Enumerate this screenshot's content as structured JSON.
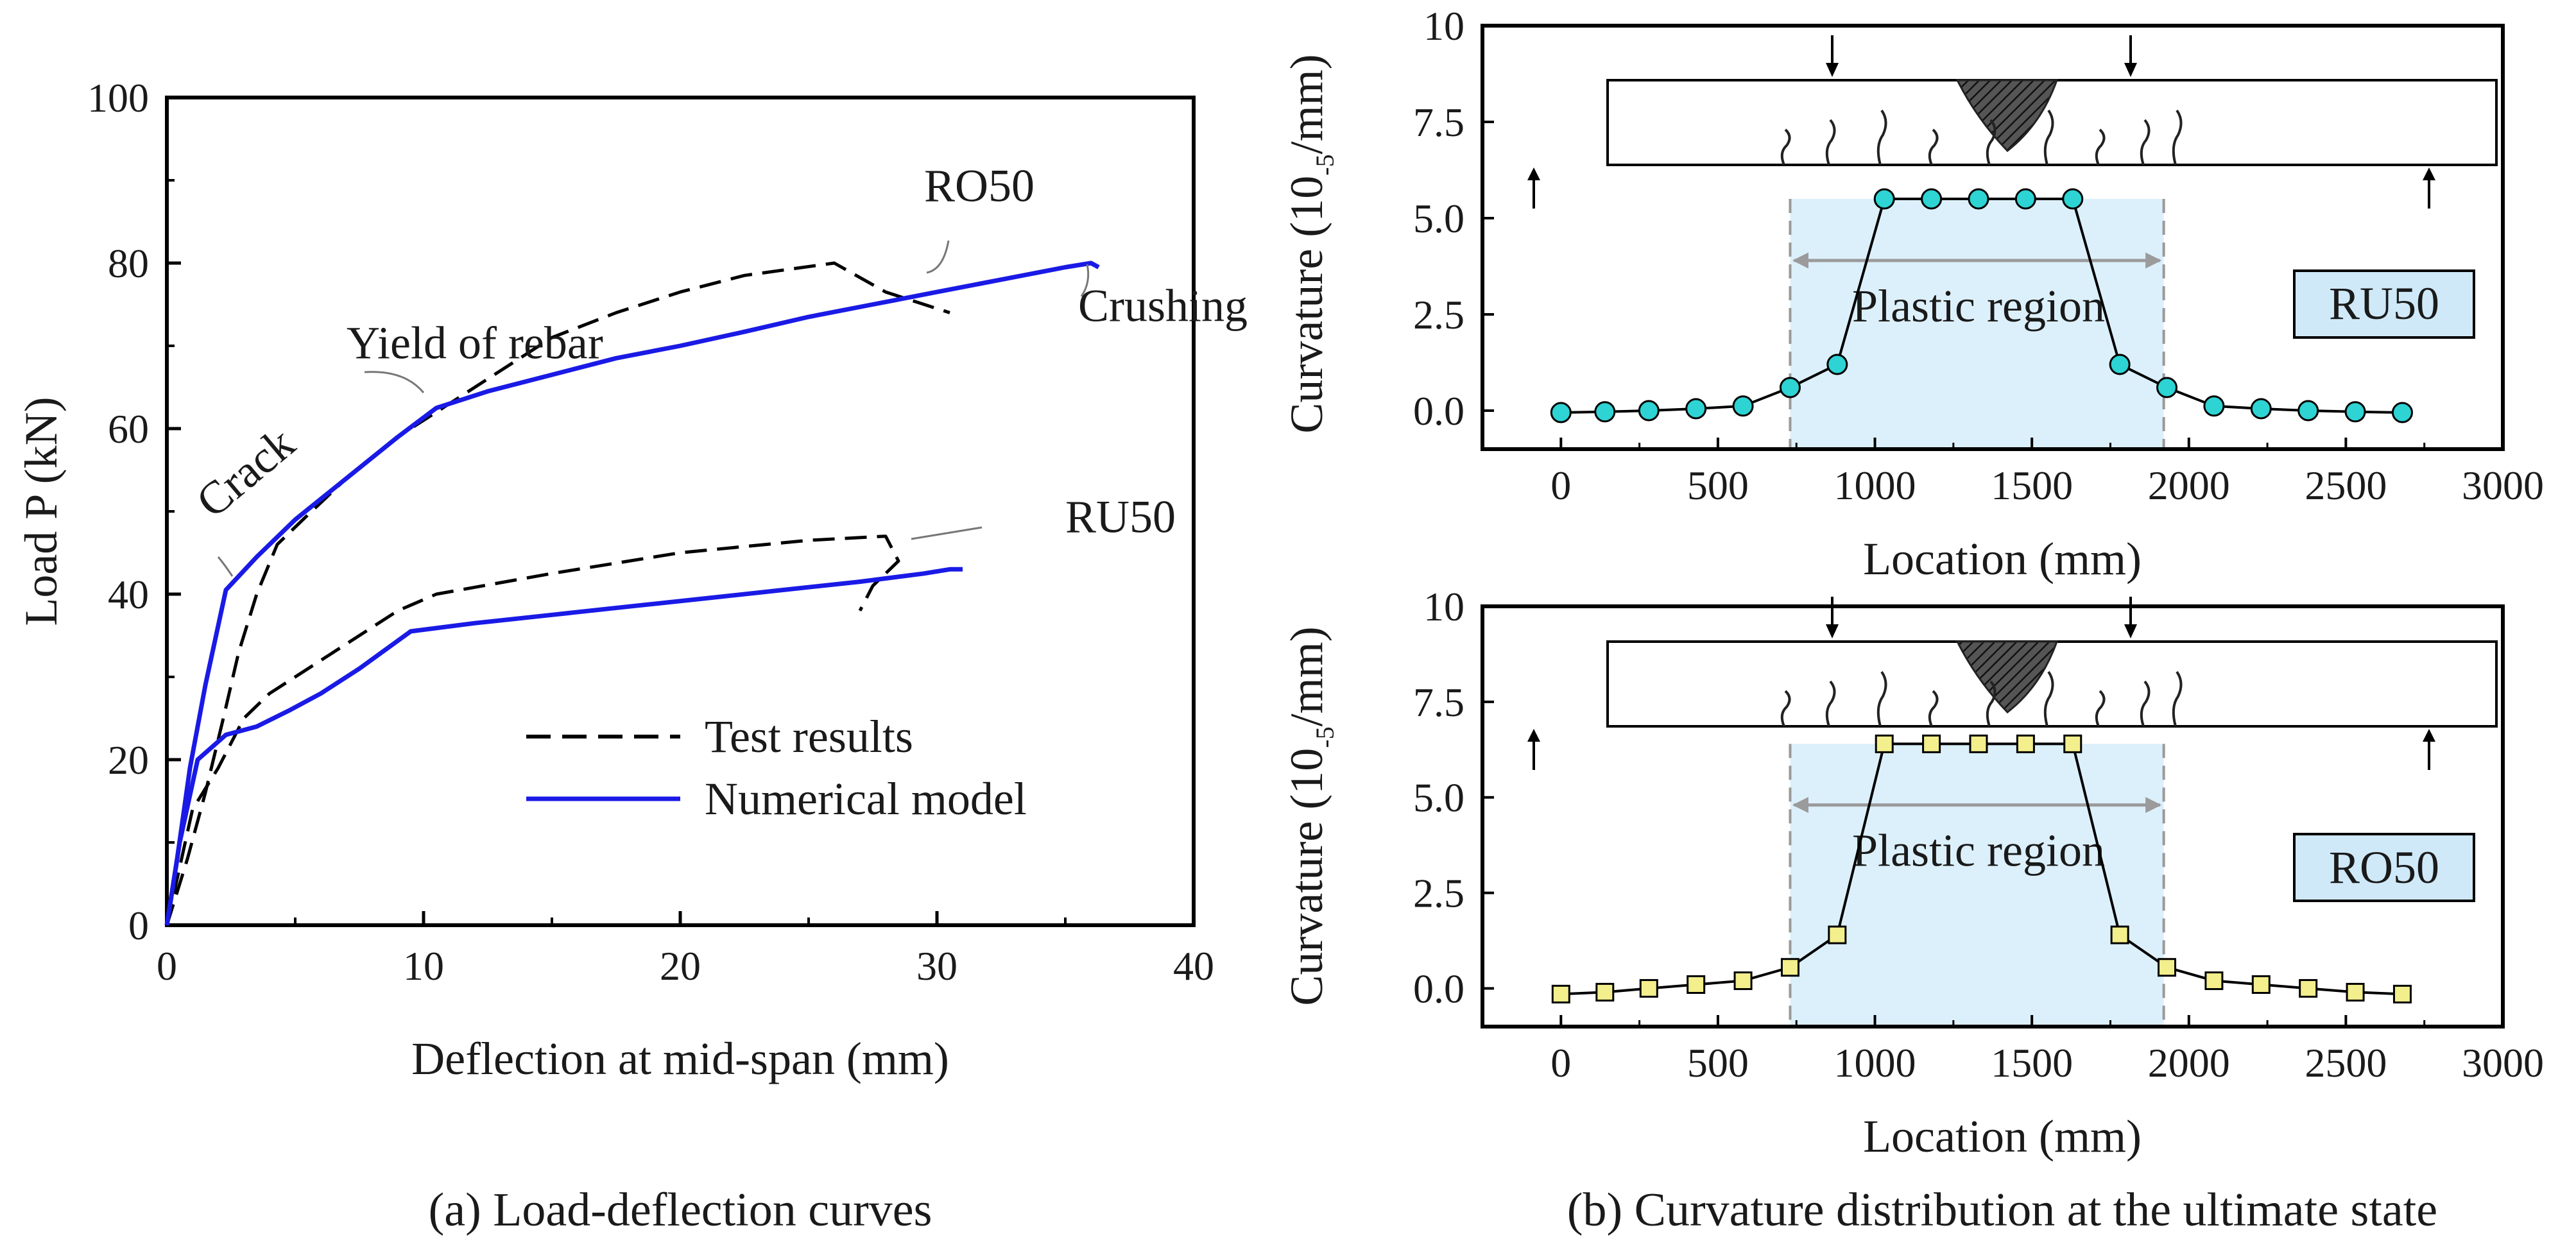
{
  "chart_data": [
    {
      "id": "load_deflection",
      "type": "line",
      "caption": "(a) Load-deflection curves",
      "xlabel": "Deflection at mid-span (mm)",
      "ylabel": "Load P (kN)",
      "xlim": [
        0,
        40
      ],
      "ylim": [
        0,
        100
      ],
      "x_ticks": [
        0,
        10,
        20,
        30,
        40
      ],
      "y_ticks": [
        0,
        20,
        40,
        60,
        80,
        100
      ],
      "grid": false,
      "legend": {
        "placement": "bottom-right",
        "entries": [
          {
            "label": "Test results",
            "style": "dashed",
            "color": "#000000"
          },
          {
            "label": "Numerical model",
            "style": "solid",
            "color": "#1a1ae6"
          }
        ]
      },
      "series": [
        {
          "name": "RO50 Test results",
          "style": "dashed",
          "color": "#000000",
          "points": [
            [
              0,
              0
            ],
            [
              0.8,
              8
            ],
            [
              1.5,
              16
            ],
            [
              2.2,
              25
            ],
            [
              2.8,
              33
            ],
            [
              3.5,
              40
            ],
            [
              4.3,
              46
            ],
            [
              5.3,
              49
            ],
            [
              7,
              54
            ],
            [
              9,
              59
            ],
            [
              11,
              63
            ],
            [
              13,
              67
            ],
            [
              15,
              71
            ],
            [
              17.5,
              74
            ],
            [
              20,
              76.5
            ],
            [
              22.5,
              78.5
            ],
            [
              26,
              80
            ],
            [
              28,
              76.5
            ],
            [
              30.5,
              74
            ]
          ]
        },
        {
          "name": "RO50 Numerical model",
          "style": "solid",
          "color": "#1a1ae6",
          "points": [
            [
              0,
              0
            ],
            [
              0.4,
              8
            ],
            [
              0.9,
              19
            ],
            [
              1.5,
              29
            ],
            [
              2.3,
              40.5
            ],
            [
              3.5,
              44.5
            ],
            [
              5,
              49
            ],
            [
              7,
              54
            ],
            [
              9,
              59
            ],
            [
              10.5,
              62.5
            ],
            [
              12.5,
              64.5
            ],
            [
              15,
              66.5
            ],
            [
              17.5,
              68.5
            ],
            [
              20,
              70
            ],
            [
              22.5,
              71.7
            ],
            [
              25,
              73.5
            ],
            [
              27.5,
              75
            ],
            [
              30,
              76.5
            ],
            [
              32.5,
              78
            ],
            [
              35,
              79.5
            ],
            [
              36,
              80
            ],
            [
              36.3,
              79.5
            ]
          ]
        },
        {
          "name": "RU50 Test results",
          "style": "dashed",
          "color": "#000000",
          "points": [
            [
              0,
              0
            ],
            [
              1,
              14
            ],
            [
              2,
              19
            ],
            [
              3,
              25
            ],
            [
              4,
              28
            ],
            [
              5,
              30
            ],
            [
              7,
              34
            ],
            [
              9,
              38
            ],
            [
              10.5,
              40
            ],
            [
              15,
              42.5
            ],
            [
              20,
              45
            ],
            [
              25,
              46.5
            ],
            [
              28,
              47
            ],
            [
              28.5,
              44
            ],
            [
              27.5,
              41
            ],
            [
              27,
              38
            ]
          ]
        },
        {
          "name": "RU50 Numerical model",
          "style": "solid",
          "color": "#1a1ae6",
          "points": [
            [
              0,
              0
            ],
            [
              0.5,
              10
            ],
            [
              1.2,
              20
            ],
            [
              2.3,
              23
            ],
            [
              3.5,
              24
            ],
            [
              4.8,
              26
            ],
            [
              6,
              28
            ],
            [
              7.5,
              31
            ],
            [
              9.5,
              35.5
            ],
            [
              12,
              36.5
            ],
            [
              15,
              37.5
            ],
            [
              18,
              38.5
            ],
            [
              21,
              39.5
            ],
            [
              24,
              40.5
            ],
            [
              27,
              41.5
            ],
            [
              29.5,
              42.5
            ],
            [
              30.5,
              43
            ],
            [
              31,
              43
            ]
          ]
        }
      ],
      "annotations": [
        {
          "text": "RO50",
          "x": 29.5,
          "y": 87.5
        },
        {
          "text": "Crushing",
          "x": 35.5,
          "y": 73
        },
        {
          "text": "Yield of rebar",
          "x": 7,
          "y": 68.5
        },
        {
          "text": "Crack",
          "x": 1.8,
          "y": 49
        },
        {
          "text": "RU50",
          "x": 35,
          "y": 47.5
        }
      ]
    },
    {
      "id": "curvature_RU50",
      "type": "line",
      "xlabel": "Location (mm)",
      "ylabel_main": "Curvature (10",
      "ylabel_sup": "-5",
      "ylabel_tail": "/mm)",
      "xlim": [
        -250,
        3000
      ],
      "ylim": [
        -1,
        10
      ],
      "x_ticks": [
        0,
        500,
        1000,
        1500,
        2000,
        2500,
        3000
      ],
      "y_ticks": [
        "0.0",
        "2.5",
        "5.0",
        "7.5",
        "10"
      ],
      "grid": false,
      "label_box": "RU50",
      "plastic_region": {
        "label": "Plastic region",
        "x_start": 730,
        "x_end": 1920
      },
      "marker": "circle",
      "marker_color": "#2ed3d3",
      "series": [
        {
          "name": "RU50",
          "x": [
            0,
            140,
            280,
            430,
            580,
            730,
            880,
            1030,
            1180,
            1330,
            1480,
            1630,
            1780,
            1930,
            2080,
            2230,
            2380,
            2530,
            2680
          ],
          "y": [
            -0.05,
            -0.03,
            0,
            0.05,
            0.12,
            0.6,
            1.2,
            5.5,
            5.5,
            5.5,
            5.5,
            5.5,
            1.2,
            0.6,
            0.12,
            0.05,
            0,
            -0.03,
            -0.05
          ]
        }
      ]
    },
    {
      "id": "curvature_RO50",
      "type": "line",
      "xlabel": "Location (mm)",
      "ylabel_main": "Curvature (10",
      "ylabel_sup": "-5",
      "ylabel_tail": "/mm)",
      "xlim": [
        -250,
        3000
      ],
      "ylim": [
        -1,
        10
      ],
      "x_ticks": [
        0,
        500,
        1000,
        1500,
        2000,
        2500,
        3000
      ],
      "y_ticks": [
        "0.0",
        "2.5",
        "5.0",
        "7.5",
        "10"
      ],
      "grid": false,
      "label_box": "RO50",
      "plastic_region": {
        "label": "Plastic region",
        "x_start": 730,
        "x_end": 1920
      },
      "marker": "square",
      "marker_color": "#f2ef8c",
      "series": [
        {
          "name": "RO50",
          "x": [
            0,
            140,
            280,
            430,
            580,
            730,
            880,
            1030,
            1180,
            1330,
            1480,
            1630,
            1780,
            1930,
            2080,
            2230,
            2380,
            2530,
            2680
          ],
          "y": [
            -0.15,
            -0.1,
            0,
            0.1,
            0.2,
            0.55,
            1.4,
            6.4,
            6.4,
            6.4,
            6.4,
            6.4,
            1.4,
            0.55,
            0.2,
            0.1,
            0,
            -0.1,
            -0.15
          ]
        }
      ]
    }
  ],
  "caption_b": "(b) Curvature distribution at the ultimate state"
}
